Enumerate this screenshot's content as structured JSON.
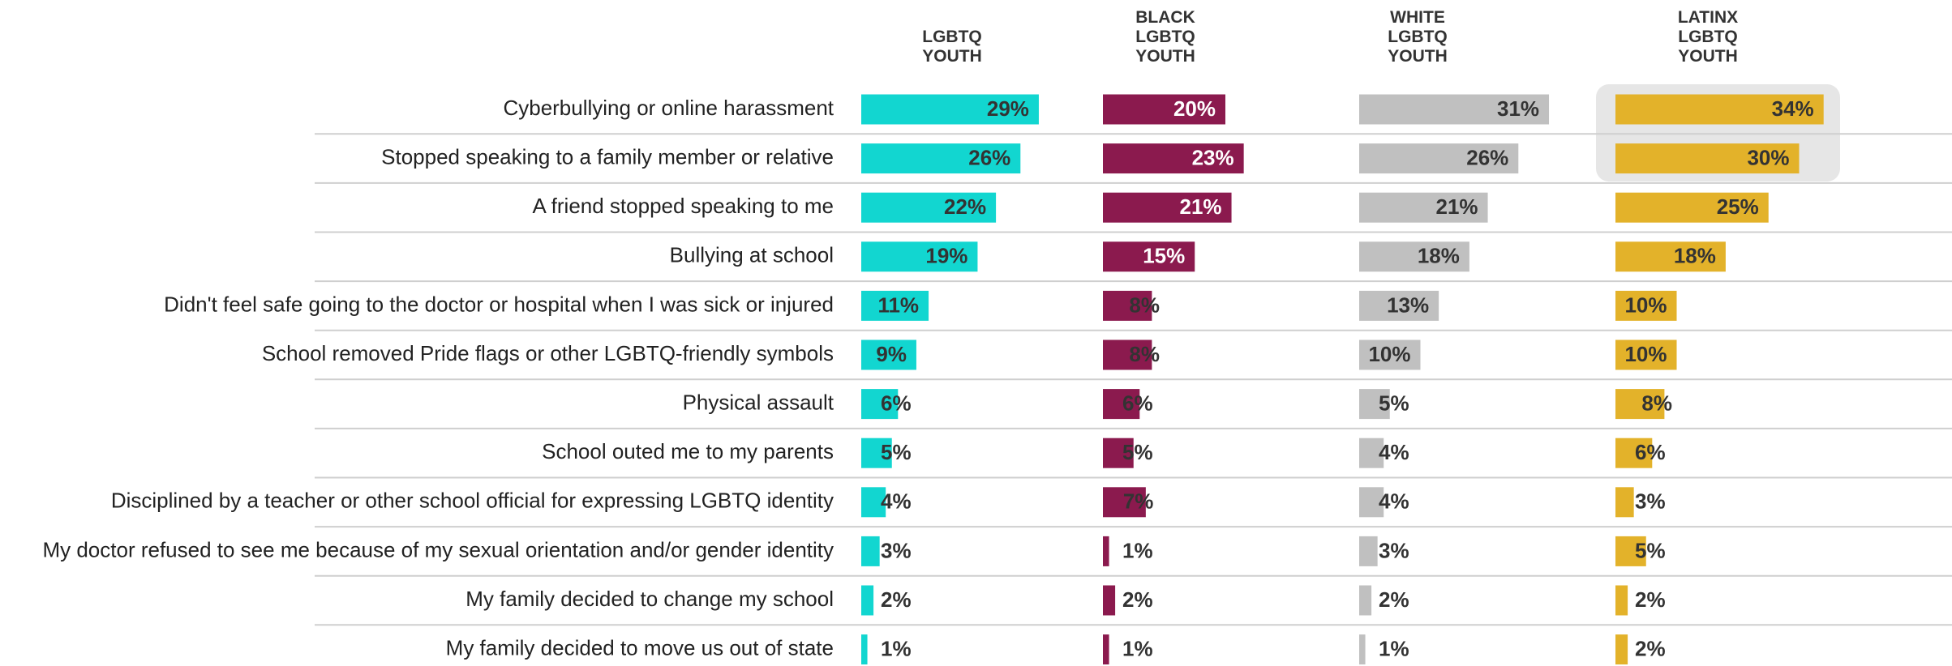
{
  "chart_data": {
    "type": "bar",
    "orientation": "horizontal",
    "categories": [
      "Cyberbullying or online harassment",
      "Stopped speaking to a family member or relative",
      "A friend stopped speaking to me",
      "Bullying at school",
      "Didn't feel safe going to the doctor or hospital when I was sick or injured",
      "School removed Pride flags or other LGBTQ-friendly symbols",
      "Physical assault",
      "School outed me to my parents",
      "Disciplined by a teacher or other school official for expressing LGBTQ identity",
      "My doctor refused to see me because of my sexual orientation and/or gender identity",
      "My family decided to change my school",
      "My family decided to move us out of state"
    ],
    "series": [
      {
        "name": "LGBTQ YOUTH",
        "color": "#12d6d0",
        "label_color": "#333333",
        "values": [
          29,
          26,
          22,
          19,
          11,
          9,
          6,
          5,
          4,
          3,
          2,
          1
        ],
        "value_labels": [
          "29%",
          "26%",
          "22%",
          "19%",
          "11%",
          "9%",
          "6%",
          "5%",
          "4%",
          "3%",
          "2%",
          "1%"
        ]
      },
      {
        "name": "BLACK LGBTQ YOUTH",
        "color": "#8b1a4e",
        "label_color": "#ffffff",
        "values": [
          20,
          23,
          21,
          15,
          8,
          8,
          6,
          5,
          7,
          1,
          2,
          1
        ],
        "value_labels": [
          "20%",
          "23%",
          "21%",
          "15%",
          "8%",
          "8%",
          "6%",
          "5%",
          "7%",
          "1%",
          "2%",
          "1%"
        ]
      },
      {
        "name": "WHITE LGBTQ YOUTH",
        "color": "#c0c0c0",
        "label_color": "#333333",
        "values": [
          31,
          26,
          21,
          18,
          13,
          10,
          5,
          4,
          4,
          3,
          2,
          1
        ],
        "value_labels": [
          "31%",
          "26%",
          "21%",
          "18%",
          "13%",
          "10%",
          "5%",
          "4%",
          "4%",
          "3%",
          "2%",
          "1%"
        ]
      },
      {
        "name": "LATINX LGBTQ YOUTH",
        "color": "#e3b22a",
        "label_color": "#333333",
        "values": [
          34,
          30,
          25,
          18,
          10,
          10,
          8,
          6,
          3,
          5,
          2,
          2
        ],
        "value_labels": [
          "34%",
          "30%",
          "25%",
          "18%",
          "10%",
          "10%",
          "8%",
          "6%",
          "3%",
          "5%",
          "2%",
          "2%"
        ]
      }
    ]
  }
}
